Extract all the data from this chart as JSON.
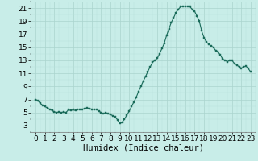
{
  "x": [
    0,
    0.25,
    0.5,
    0.75,
    1,
    1.25,
    1.5,
    1.75,
    2,
    2.25,
    2.5,
    2.75,
    3,
    3.25,
    3.5,
    3.75,
    4,
    4.25,
    4.5,
    4.75,
    5,
    5.25,
    5.5,
    5.75,
    6,
    6.25,
    6.5,
    6.75,
    7,
    7.25,
    7.5,
    7.75,
    8,
    8.25,
    8.5,
    8.75,
    9,
    9.25,
    9.5,
    9.75,
    10,
    10.25,
    10.5,
    10.75,
    11,
    11.25,
    11.5,
    11.75,
    12,
    12.25,
    12.5,
    12.75,
    13,
    13.25,
    13.5,
    13.75,
    14,
    14.25,
    14.5,
    14.75,
    15,
    15.25,
    15.5,
    15.75,
    16,
    16.25,
    16.5,
    16.75,
    17,
    17.25,
    17.5,
    17.75,
    18,
    18.25,
    18.5,
    18.75,
    19,
    19.25,
    19.5,
    19.75,
    20,
    20.25,
    20.5,
    20.75,
    21,
    21.25,
    21.5,
    21.75,
    22,
    22.25,
    22.5,
    22.75,
    23
  ],
  "y": [
    7.0,
    6.8,
    6.4,
    6.1,
    5.9,
    5.7,
    5.5,
    5.3,
    5.1,
    5.0,
    5.1,
    5.0,
    5.1,
    5.0,
    5.4,
    5.3,
    5.4,
    5.3,
    5.5,
    5.5,
    5.5,
    5.6,
    5.7,
    5.6,
    5.5,
    5.5,
    5.5,
    5.2,
    5.0,
    4.8,
    5.0,
    4.8,
    4.7,
    4.5,
    4.3,
    3.9,
    3.3,
    3.5,
    4.0,
    4.6,
    5.2,
    5.9,
    6.6,
    7.3,
    8.2,
    9.0,
    9.8,
    10.5,
    11.3,
    12.0,
    12.7,
    13.0,
    13.3,
    14.0,
    14.8,
    15.6,
    16.8,
    17.8,
    18.8,
    19.5,
    20.3,
    20.8,
    21.2,
    21.3,
    21.3,
    21.3,
    21.2,
    20.8,
    20.5,
    19.8,
    19.0,
    17.5,
    16.5,
    15.8,
    15.5,
    15.2,
    15.0,
    14.5,
    14.3,
    13.8,
    13.2,
    13.0,
    12.8,
    13.0,
    13.0,
    12.5,
    12.3,
    12.0,
    11.8,
    12.0,
    12.1,
    11.7,
    11.2
  ],
  "line_color": "#1a6b5a",
  "marker_color": "#1a6b5a",
  "bg_color": "#c8ede8",
  "grid_major_color": "#aad4ce",
  "grid_minor_color": "#b8e0db",
  "xlabel": "Humidex (Indice chaleur)",
  "xlim": [
    -0.5,
    23.5
  ],
  "ylim": [
    2,
    22
  ],
  "yticks": [
    3,
    5,
    7,
    9,
    11,
    13,
    15,
    17,
    19,
    21
  ],
  "xticks": [
    0,
    1,
    2,
    3,
    4,
    5,
    6,
    7,
    8,
    9,
    10,
    11,
    12,
    13,
    14,
    15,
    16,
    17,
    18,
    19,
    20,
    21,
    22,
    23
  ],
  "tick_fontsize": 6.5,
  "xlabel_fontsize": 7.5
}
